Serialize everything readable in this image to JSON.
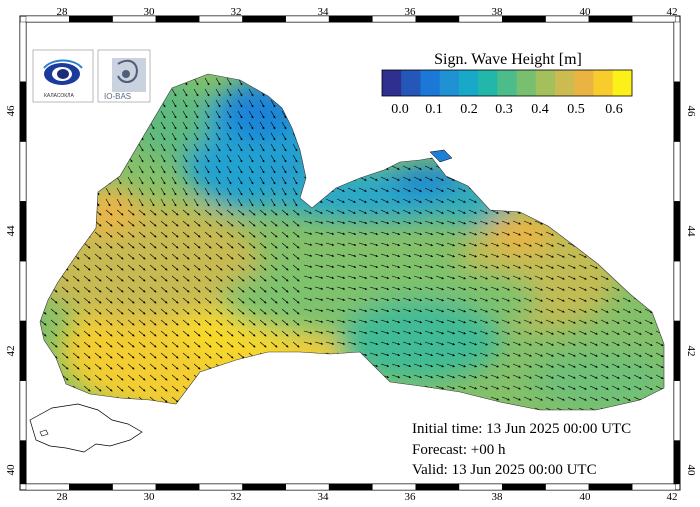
{
  "map": {
    "legend": {
      "title": "Sign. Wave Height [m]",
      "ticks": [
        "0.0",
        "0.1",
        "0.2",
        "0.3",
        "0.4",
        "0.5",
        "0.6"
      ],
      "colors": [
        "#2f2f8f",
        "#2457b8",
        "#1c78d6",
        "#1f92d4",
        "#18a9c9",
        "#22b7a8",
        "#4cbc8a",
        "#78c06f",
        "#a4c05c",
        "#ccbb50",
        "#eab443",
        "#f7cc2c",
        "#fbf017"
      ]
    },
    "lon_labels": [
      "28",
      "30",
      "32",
      "34",
      "36",
      "38",
      "40",
      "42"
    ],
    "lat_labels": [
      "40",
      "42",
      "44",
      "46"
    ],
    "info": {
      "initial": "Initial time: 13 Jun 2025 00:00 UTC",
      "forecast": "Forecast: +00 h",
      "valid": "Valid: 13 Jun 2025 00:00 UTC"
    },
    "logos": {
      "left_caption": "КАЛАСОКЛА",
      "right_text": "IO-BAS"
    },
    "land_color": "#ffffff",
    "frame_color": "#000000"
  }
}
